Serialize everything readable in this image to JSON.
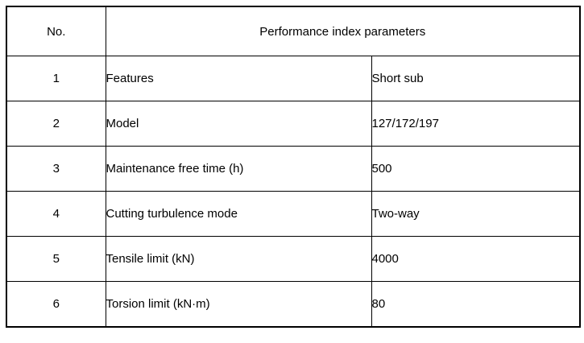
{
  "table": {
    "header": {
      "no_label": "No.",
      "params_label": "Performance index parameters"
    },
    "rows": [
      {
        "no": "1",
        "feature": "Features",
        "value": "Short sub"
      },
      {
        "no": "2",
        "feature": "Model",
        "value": "127/172/197"
      },
      {
        "no": "3",
        "feature": "Maintenance free time (h)",
        "value": "500"
      },
      {
        "no": "4",
        "feature": "Cutting turbulence mode",
        "value": "Two-way"
      },
      {
        "no": "5",
        "feature": "Tensile limit (kN)",
        "value": "4000"
      },
      {
        "no": "6",
        "feature": "Torsion limit (kN·m)",
        "value": "80"
      }
    ],
    "colors": {
      "border": "#000000",
      "text": "#000000",
      "background": "#ffffff"
    }
  }
}
